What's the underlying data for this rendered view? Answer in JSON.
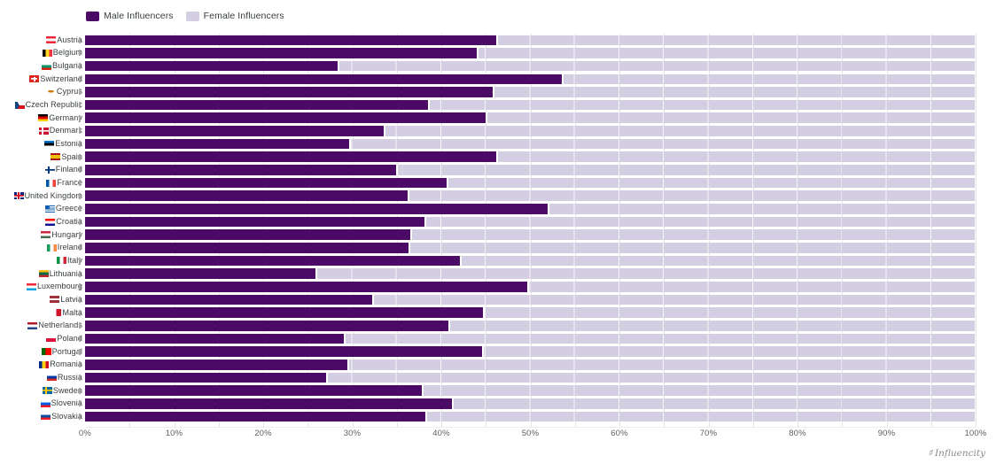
{
  "legend": {
    "items": [
      {
        "label": "Male Influencers",
        "color": "#4A0A66",
        "swatch_style": "background:#4A0A66"
      },
      {
        "label": "Female Influencers",
        "color": "#D4CEE3",
        "swatch_style": "background:#D4CEE3"
      }
    ]
  },
  "watermark": {
    "icon": "♯",
    "text": "Influencity"
  },
  "colors": {
    "male_bar": "#4A0A66",
    "female_bar": "#D4CEE3",
    "gridline": "#e7e7e7",
    "axis_text": "#606060",
    "label_text": "#373d3f"
  },
  "chart_data": {
    "type": "bar",
    "orientation": "horizontal",
    "stacked": true,
    "stack_total": 100,
    "xlim": [
      0,
      100
    ],
    "x_ticks": [
      "0%",
      "10%",
      "20%",
      "30%",
      "40%",
      "50%",
      "60%",
      "70%",
      "80%",
      "90%",
      "100%"
    ],
    "grid": "vertical lines every 5%, legend top-left",
    "legend_position": "top-left",
    "categories": [
      "Austria",
      "Belgium",
      "Bulgaria",
      "Switzerland",
      "Cyprus",
      "Czech Republic",
      "Germany",
      "Denmark",
      "Estonia",
      "Spain",
      "Finland",
      "France",
      "United Kingdom",
      "Greece",
      "Croatia",
      "Hungary",
      "Ireland",
      "Italy",
      "Lithuania",
      "Luxembourg",
      "Latvia",
      "Malta",
      "Netherlands",
      "Poland",
      "Portugal",
      "Romania",
      "Russia",
      "Sweden",
      "Slovenia",
      "Slovakia"
    ],
    "series": [
      {
        "name": "Male Influencers",
        "color": "#4A0A66",
        "values": [
          46.2,
          44.0,
          28.4,
          53.5,
          45.8,
          38.5,
          45.0,
          33.5,
          29.7,
          46.2,
          34.9,
          40.6,
          36.2,
          51.9,
          38.1,
          36.5,
          36.3,
          42.1,
          25.9,
          49.7,
          32.2,
          44.7,
          40.8,
          29.1,
          44.6,
          29.5,
          27.1,
          37.8,
          41.2,
          38.2
        ]
      },
      {
        "name": "Female Influencers",
        "color": "#D4CEE3",
        "values": [
          53.8,
          56.0,
          71.6,
          46.5,
          54.2,
          61.5,
          55.0,
          66.5,
          70.3,
          53.8,
          65.1,
          59.4,
          63.8,
          48.1,
          61.9,
          63.5,
          63.7,
          57.9,
          74.1,
          50.3,
          67.8,
          55.3,
          59.2,
          70.9,
          55.4,
          70.5,
          72.9,
          62.2,
          58.8,
          61.8
        ]
      }
    ],
    "flags": [
      "linear-gradient(180deg,#ed2939 33%,#fff 33% 66%,#ed2939 66%)",
      "linear-gradient(90deg,#000 33%,#fdda24 33% 66%,#ef3340 66%)",
      "linear-gradient(180deg,#fff 33%,#00966e 33% 66%,#d62612 66%)",
      "linear-gradient(#fff,#fff) 50% 50%/64% 22% no-repeat,linear-gradient(#fff,#fff) 50% 50%/22% 64% no-repeat #da291c",
      "radial-gradient(ellipse 30% 18% at 50% 40%,#d57800 98%,transparent) #fff",
      "conic-gradient(from 210deg at 45% 50%,#11457e 0 120deg,#0000 0),linear-gradient(180deg,#fff 50%,#d7141a 50%)",
      "linear-gradient(180deg,#000 33%,#dd0000 33% 66%,#ffce00 66%)",
      "linear-gradient(#fff,#fff) 0 50%/100% 20% no-repeat,linear-gradient(#fff,#fff) 33% 0/20% 100% no-repeat #c8102e",
      "linear-gradient(180deg,#0072ce 33%,#000 33% 66%,#fff 66%)",
      "linear-gradient(180deg,#aa151b 25%,#f1bf00 25% 75%,#aa151b 75%)",
      "linear-gradient(#003580,#003580) 0 50%/100% 22% no-repeat,linear-gradient(#003580,#003580) 33% 0/22% 100% no-repeat #fff",
      "linear-gradient(90deg,#0055a4 33%,#fff 33% 66%,#ef4135 66%)",
      "linear-gradient(#cf142b,#cf142b) 50% 50%/100% 22% no-repeat,linear-gradient(#cf142b,#cf142b) 50% 50%/22% 100% no-repeat,linear-gradient(#fff,#fff) 50% 50%/100% 40% no-repeat,linear-gradient(#fff,#fff) 50% 50%/40% 100% no-repeat #00247d",
      "linear-gradient(#0d5eaf,#0d5eaf) 0 0/44% 55% no-repeat,repeating-linear-gradient(180deg,#0d5eaf 0 11%,#fff 11% 22%)",
      "linear-gradient(180deg,#ff0000 33%,#fff 33% 66%,#171796 66%)",
      "linear-gradient(180deg,#cd2a3e 33%,#fff 33% 66%,#436f4d 66%)",
      "linear-gradient(90deg,#169b62 33%,#fff 33% 66%,#ff883e 66%)",
      "linear-gradient(90deg,#009246 33%,#fff 33% 66%,#ce2b37 66%)",
      "linear-gradient(180deg,#fdb913 33%,#006a44 33% 66%,#c1272d 66%)",
      "linear-gradient(180deg,#ed2939 33%,#fff 33% 66%,#00a1de 66%)",
      "linear-gradient(180deg,#9e3039 40%,#fff 40% 60%,#9e3039 60%)",
      "linear-gradient(90deg,#fff 50%,#cf142b 50%)",
      "linear-gradient(180deg,#ae1c28 33%,#fff 33% 66%,#21468b 66%)",
      "linear-gradient(180deg,#fff 50%,#dc143c 50%)",
      "linear-gradient(90deg,#006600 40%,#ff0000 40%)",
      "linear-gradient(90deg,#002b7f 33%,#fcd116 33% 66%,#ce1126 66%)",
      "linear-gradient(180deg,#fff 33%,#0039a6 33% 66%,#d52b1e 66%)",
      "linear-gradient(#fecc00,#fecc00) 0 50%/100% 20% no-repeat,linear-gradient(#fecc00,#fecc00) 33% 0/20% 100% no-repeat #006aa7",
      "linear-gradient(180deg,#fff 33%,#005ce5 33% 66%,#ed1c24 66%)",
      "linear-gradient(180deg,#fff 33%,#0b4ea2 33% 66%,#ee1c25 66%)"
    ]
  }
}
